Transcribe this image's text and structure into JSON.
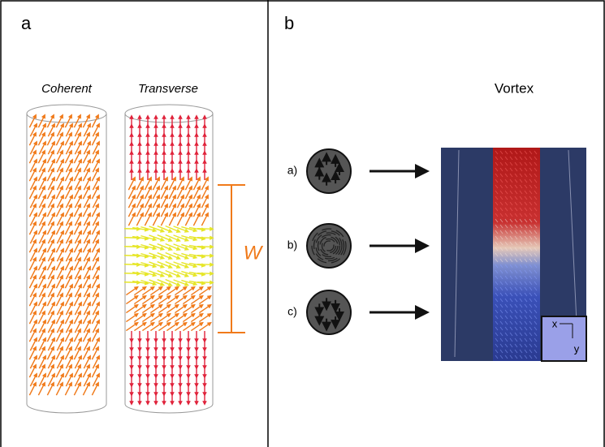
{
  "panels": {
    "a": {
      "label": "a",
      "columns": [
        "Coherent",
        "Transverse"
      ],
      "width_label": "W"
    },
    "b": {
      "label": "b",
      "title": "Vortex",
      "states": [
        "a)",
        "b)",
        "c)"
      ],
      "axes": [
        "x",
        "y"
      ]
    }
  }
}
